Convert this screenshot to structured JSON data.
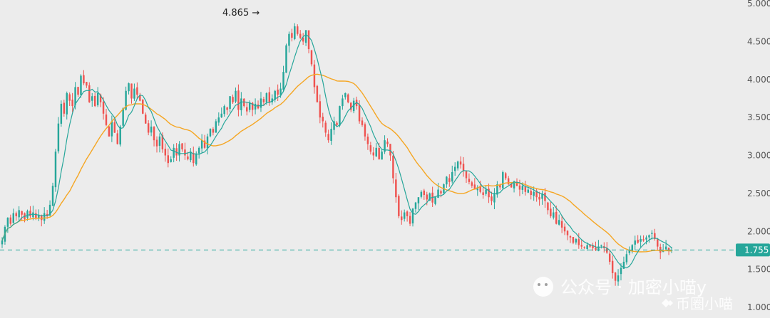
{
  "chart_data": {
    "type": "candlestick",
    "y_ticks": [
      "5.000",
      "4.500",
      "4.000",
      "3.500",
      "3.000",
      "2.500",
      "2.000",
      "1.500",
      "1.000"
    ],
    "ylim": [
      1.0,
      5.0
    ],
    "current_price": {
      "value": 1.755,
      "label": "1.755",
      "color": "#26a69a"
    },
    "high_marker": {
      "label": "4.865 →",
      "value": 4.865
    },
    "colors": {
      "up": "#26a69a",
      "down": "#ef5350",
      "ma_fast": "#26a69a",
      "ma_slow": "#f5a623",
      "background": "#ececec"
    },
    "grid": false,
    "closes": [
      1.88,
      2.06,
      2.18,
      2.1,
      2.24,
      2.2,
      2.28,
      2.22,
      2.16,
      2.27,
      2.2,
      2.25,
      2.18,
      2.22,
      2.15,
      2.24,
      2.2,
      2.35,
      2.6,
      3.05,
      3.42,
      3.68,
      3.55,
      3.82,
      3.72,
      3.65,
      3.9,
      3.8,
      4.05,
      3.95,
      3.92,
      3.7,
      3.78,
      3.65,
      3.82,
      3.7,
      3.55,
      3.4,
      3.25,
      3.45,
      3.3,
      3.15,
      3.38,
      3.62,
      3.85,
      3.95,
      3.75,
      3.88,
      3.8,
      3.72,
      3.55,
      3.42,
      3.3,
      3.38,
      3.2,
      3.12,
      3.25,
      3.08,
      3.0,
      2.9,
      2.95,
      3.1,
      3.0,
      3.15,
      3.08,
      3.0,
      2.95,
      3.05,
      2.9,
      3.02,
      3.1,
      3.2,
      3.1,
      3.25,
      3.35,
      3.3,
      3.45,
      3.5,
      3.55,
      3.65,
      3.6,
      3.78,
      3.7,
      3.85,
      3.6,
      3.75,
      3.65,
      3.58,
      3.7,
      3.6,
      3.68,
      3.62,
      3.75,
      3.7,
      3.82,
      3.7,
      3.75,
      3.85,
      3.8,
      3.88,
      4.1,
      4.45,
      4.6,
      4.55,
      4.7,
      4.6,
      4.55,
      4.5,
      4.65,
      4.4,
      4.2,
      3.9,
      3.7,
      3.5,
      3.45,
      3.3,
      3.2,
      3.35,
      3.45,
      3.4,
      3.65,
      3.75,
      3.82,
      3.7,
      3.6,
      3.72,
      3.65,
      3.45,
      3.4,
      3.25,
      3.15,
      3.05,
      3.0,
      3.1,
      2.95,
      3.05,
      3.2,
      3.15,
      3.0,
      2.7,
      2.45,
      2.2,
      2.15,
      2.25,
      2.2,
      2.1,
      2.3,
      2.38,
      2.45,
      2.52,
      2.48,
      2.42,
      2.5,
      2.38,
      2.45,
      2.55,
      2.5,
      2.62,
      2.72,
      2.65,
      2.78,
      2.85,
      2.92,
      2.88,
      2.8,
      2.7,
      2.65,
      2.6,
      2.55,
      2.58,
      2.52,
      2.48,
      2.55,
      2.45,
      2.4,
      2.5,
      2.62,
      2.58,
      2.78,
      2.7,
      2.62,
      2.58,
      2.66,
      2.6,
      2.55,
      2.6,
      2.52,
      2.55,
      2.48,
      2.52,
      2.45,
      2.42,
      2.5,
      2.4,
      2.28,
      2.2,
      2.25,
      2.1,
      2.15,
      2.05,
      2.0,
      1.95,
      1.92,
      1.85,
      1.9,
      1.82,
      1.8,
      1.78,
      1.82,
      1.8,
      1.78,
      1.76,
      1.8,
      1.82,
      1.78,
      1.72,
      1.6,
      1.45,
      1.35,
      1.42,
      1.52,
      1.6,
      1.7,
      1.75,
      1.82,
      1.88,
      1.85,
      1.9,
      1.88,
      1.92,
      1.95,
      1.98,
      1.9,
      1.8,
      1.72,
      1.75,
      1.8,
      1.76,
      1.755
    ]
  },
  "watermark": {
    "line1": "公众号 · 加密小喵y",
    "line2": "币圈小喵"
  }
}
